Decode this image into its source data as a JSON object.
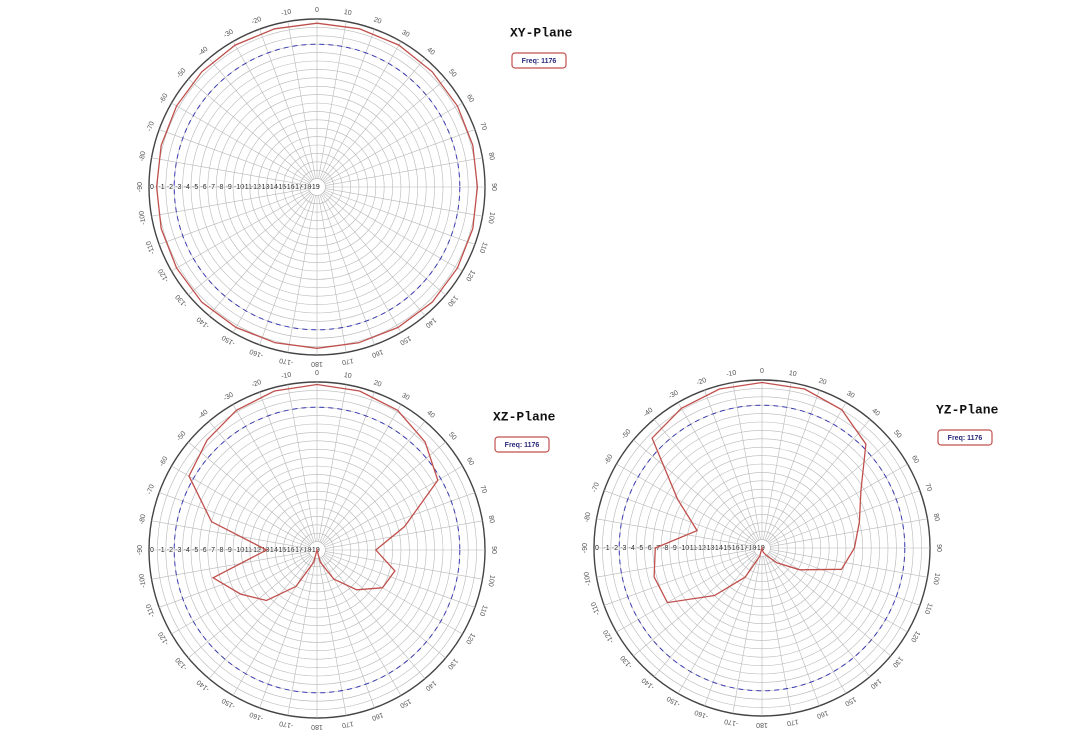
{
  "chart_data": [
    {
      "type": "polar",
      "title": "XY-Plane",
      "x": [
        -165,
        -150,
        -135,
        -120,
        -105,
        -90,
        -75,
        -60,
        -45,
        -30,
        -15,
        0,
        15,
        30,
        45,
        60,
        75,
        90,
        105,
        120,
        135,
        150,
        165,
        180
      ],
      "series": [
        {
          "name": "Freq: 1176",
          "color": "#c0504d",
          "values": [
            -0.8,
            -0.7,
            -0.6,
            -0.7,
            -0.8,
            -0.9,
            -0.8,
            -0.7,
            -0.6,
            -0.5,
            -0.5,
            -0.5,
            -0.5,
            -0.5,
            -0.6,
            -0.7,
            -0.8,
            -0.9,
            -0.8,
            -0.7,
            -0.6,
            -0.7,
            -0.8,
            -0.8
          ]
        }
      ],
      "xticks": [
        -170,
        -160,
        -150,
        -140,
        -130,
        -120,
        -110,
        -100,
        -90,
        -80,
        -70,
        -60,
        -50,
        -40,
        -30,
        -20,
        -10,
        0,
        10,
        20,
        30,
        40,
        50,
        60,
        70,
        80,
        90,
        100,
        110,
        120,
        130,
        140,
        150,
        160,
        170,
        180
      ],
      "ylim": [
        -20,
        0
      ],
      "yticks": [
        0,
        -1,
        -2,
        -3,
        -4,
        -5,
        -6,
        -7,
        -8,
        -9,
        -10,
        -11,
        -12,
        -13,
        -14,
        -15,
        -16,
        -17,
        -18,
        -19
      ],
      "reference_level": -3,
      "reference_color": "#3a3ab0",
      "grid": true
    },
    {
      "type": "polar",
      "title": "XZ-Plane",
      "x": [
        -165,
        -150,
        -135,
        -120,
        -105,
        -90,
        -75,
        -60,
        -45,
        -30,
        -15,
        0,
        15,
        30,
        45,
        60,
        75,
        90,
        105,
        120,
        135,
        150,
        165,
        180
      ],
      "series": [
        {
          "name": "Freq: 1176",
          "color": "#c0504d",
          "values": [
            -18.5,
            -15,
            -11.5,
            -9.5,
            -7.2,
            -14,
            -7,
            -2.4,
            -1.5,
            -0.8,
            -0.4,
            -0.3,
            -0.4,
            -0.8,
            -1.8,
            -3.4,
            -9.2,
            -13,
            -10.4,
            -11,
            -13.3,
            -16,
            -18.5,
            -20
          ]
        }
      ],
      "xticks": [
        -170,
        -160,
        -150,
        -140,
        -130,
        -120,
        -110,
        -100,
        -90,
        -80,
        -70,
        -60,
        -50,
        -40,
        -30,
        -20,
        -10,
        0,
        10,
        20,
        30,
        40,
        50,
        60,
        70,
        80,
        90,
        100,
        110,
        120,
        130,
        140,
        150,
        160,
        170,
        180
      ],
      "ylim": [
        -20,
        0
      ],
      "yticks": [
        0,
        -1,
        -2,
        -3,
        -4,
        -5,
        -6,
        -7,
        -8,
        -9,
        -10,
        -11,
        -12,
        -13,
        -14,
        -15,
        -16,
        -17,
        -18,
        -19
      ],
      "reference_level": -3,
      "reference_color": "#3a3ab0",
      "grid": true
    },
    {
      "type": "polar",
      "title": "YZ-Plane",
      "x": [
        -165,
        -150,
        -135,
        -120,
        -105,
        -90,
        -75,
        -60,
        -45,
        -30,
        -15,
        0,
        15,
        30,
        45,
        60,
        75,
        90,
        105,
        120,
        135,
        150,
        165,
        180
      ],
      "series": [
        {
          "name": "Freq: 1176",
          "color": "#c0504d",
          "values": [
            -19,
            -16,
            -12,
            -7,
            -6.7,
            -7.3,
            -12,
            -8.4,
            -1.5,
            -0.8,
            -0.4,
            -0.3,
            -0.4,
            -1,
            -2.5,
            -6.4,
            -8,
            -9,
            -10.2,
            -14.8,
            -17.5,
            -19,
            -19.5,
            -20
          ]
        }
      ],
      "xticks": [
        -170,
        -160,
        -150,
        -140,
        -130,
        -120,
        -110,
        -100,
        -90,
        -80,
        -70,
        -60,
        -50,
        -40,
        -30,
        -20,
        -10,
        0,
        10,
        20,
        30,
        40,
        50,
        60,
        70,
        80,
        90,
        100,
        110,
        120,
        130,
        140,
        150,
        160,
        170,
        180
      ],
      "ylim": [
        -20,
        0
      ],
      "yticks": [
        0,
        -1,
        -2,
        -3,
        -4,
        -5,
        -6,
        -7,
        -8,
        -9,
        -10,
        -11,
        -12,
        -13,
        -14,
        -15,
        -16,
        -17,
        -18,
        -19
      ],
      "reference_level": -3,
      "reference_color": "#3a3ab0",
      "grid": true
    }
  ]
}
